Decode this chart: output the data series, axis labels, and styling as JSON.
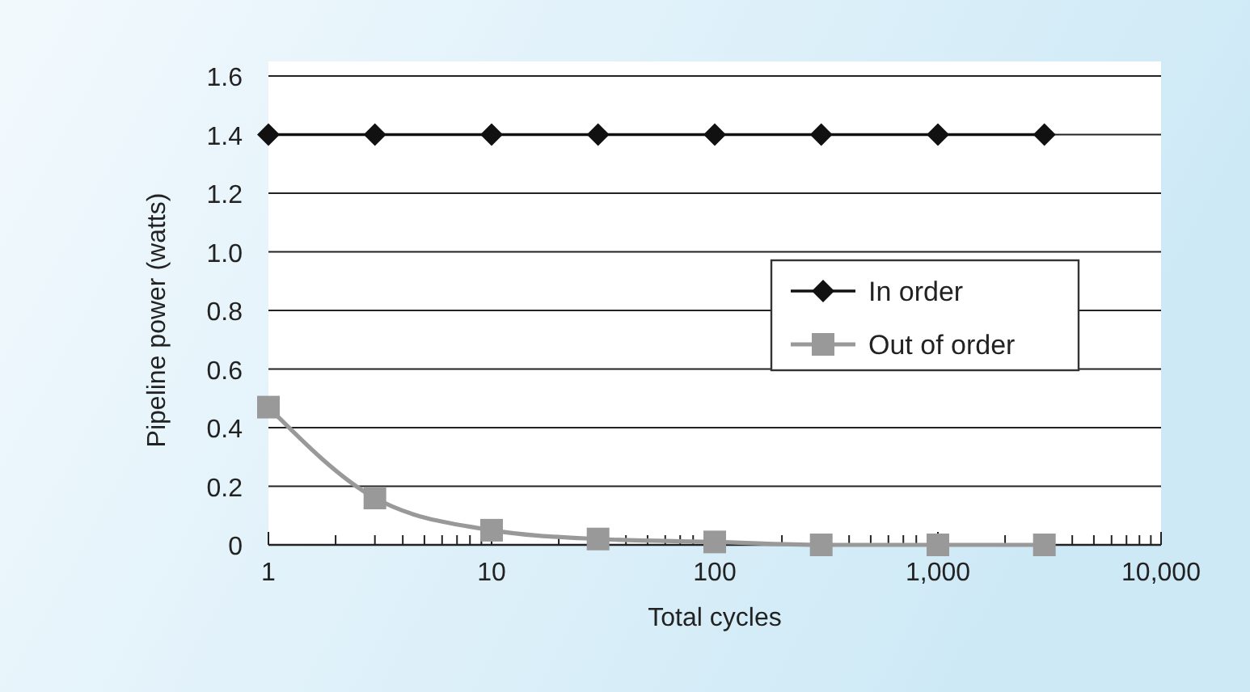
{
  "chart_data": {
    "type": "line",
    "xlabel": "Total cycles",
    "ylabel": "Pipeline power (watts)",
    "log": "x",
    "x": [
      1,
      3,
      10,
      30,
      100,
      300,
      1000,
      3000
    ],
    "xlim": [
      1,
      10000
    ],
    "xticks": [
      1,
      {
        "value": 2,
        "label": null
      },
      {
        "value": 3,
        "label": null
      },
      {
        "value": 4,
        "label": null
      },
      {
        "value": 5,
        "label": null
      },
      {
        "value": 6,
        "label": null
      },
      {
        "value": 7,
        "label": null
      },
      {
        "value": 8,
        "label": null
      },
      {
        "value": 9,
        "label": null
      },
      10,
      {
        "value": 20,
        "label": null
      },
      {
        "value": 30,
        "label": null
      },
      {
        "value": 40,
        "label": null
      },
      {
        "value": 50,
        "label": null
      },
      {
        "value": 60,
        "label": null
      },
      {
        "value": 70,
        "label": null
      },
      {
        "value": 80,
        "label": null
      },
      {
        "value": 90,
        "label": null
      },
      100,
      {
        "value": 200,
        "label": null
      },
      {
        "value": 300,
        "label": null
      },
      {
        "value": 400,
        "label": null
      },
      {
        "value": 500,
        "label": null
      },
      {
        "value": 600,
        "label": null
      },
      {
        "value": 700,
        "label": null
      },
      {
        "value": 800,
        "label": null
      },
      {
        "value": 900,
        "label": null
      },
      {
        "value": 1000,
        "label": "1,000"
      },
      {
        "value": 2000,
        "label": null
      },
      {
        "value": 3000,
        "label": null
      },
      {
        "value": 4000,
        "label": null
      },
      {
        "value": 5000,
        "label": null
      },
      {
        "value": 6000,
        "label": null
      },
      {
        "value": 7000,
        "label": null
      },
      {
        "value": 8000,
        "label": null
      },
      {
        "value": 9000,
        "label": null
      },
      {
        "value": 10000,
        "label": "10,000"
      }
    ],
    "ylim": [
      0,
      1.6
    ],
    "yticks": [
      0,
      0.2,
      0.4,
      0.6,
      0.8,
      {
        "value": 1,
        "label": "1.0"
      },
      1.2,
      1.4,
      1.6
    ],
    "grid": "y",
    "legend": "right",
    "series": [
      {
        "name": "In order",
        "color": "#111111",
        "marker": "diamond",
        "values": [
          1.4,
          1.4,
          1.4,
          1.4,
          1.4,
          1.4,
          1.4,
          1.4
        ]
      },
      {
        "name": "Out of order",
        "color": "#999999",
        "marker": "square",
        "values": [
          0.47,
          0.16,
          0.05,
          0.02,
          0.01,
          0,
          0,
          0
        ]
      }
    ]
  }
}
